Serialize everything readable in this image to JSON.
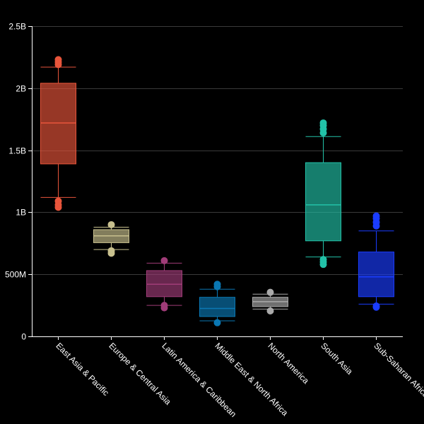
{
  "chart_data": {
    "type": "box",
    "title": "",
    "xlabel": "",
    "ylabel": "",
    "ylim": [
      0,
      2500000000
    ],
    "y_ticks": [
      {
        "value": 0,
        "label": "0"
      },
      {
        "value": 500000000,
        "label": "500M"
      },
      {
        "value": 1000000000,
        "label": "1B"
      },
      {
        "value": 1500000000,
        "label": "1.5B"
      },
      {
        "value": 2000000000,
        "label": "2B"
      },
      {
        "value": 2500000000,
        "label": "2.5B"
      }
    ],
    "grid": true,
    "legend": "none",
    "categories": [
      "East Asia & Pacific",
      "Europe & Central Asia",
      "Latin America & Caribbean",
      "Middle East & North Africa",
      "North America",
      "South Asia",
      "Sub-Saharan Africa"
    ],
    "boxes": [
      {
        "category": "East Asia & Pacific",
        "color": "#e8553b",
        "whisker_low": 1120000000,
        "q1": 1390000000,
        "median": 1720000000,
        "q3": 2040000000,
        "whisker_high": 2170000000,
        "outliers": [
          1040000000,
          1060000000,
          1090000000,
          2190000000,
          2210000000,
          2230000000
        ]
      },
      {
        "category": "Europe & Central Asia",
        "color": "#c8c08e",
        "whisker_low": 700000000,
        "q1": 755000000,
        "median": 810000000,
        "q3": 860000000,
        "whisker_high": 880000000,
        "outliers": [
          670000000,
          690000000,
          900000000
        ]
      },
      {
        "category": "Latin America & Caribbean",
        "color": "#a03c78",
        "whisker_low": 250000000,
        "q1": 320000000,
        "median": 420000000,
        "q3": 530000000,
        "whisker_high": 590000000,
        "outliers": [
          230000000,
          250000000,
          610000000
        ]
      },
      {
        "category": "Middle East & North Africa",
        "color": "#0a78b4",
        "whisker_low": 125000000,
        "q1": 160000000,
        "median": 225000000,
        "q3": 315000000,
        "whisker_high": 380000000,
        "outliers": [
          110000000,
          400000000,
          420000000
        ]
      },
      {
        "category": "North America",
        "color": "#aaaaaa",
        "whisker_low": 220000000,
        "q1": 240000000,
        "median": 280000000,
        "q3": 315000000,
        "whisker_high": 340000000,
        "outliers": [
          205000000,
          355000000
        ]
      },
      {
        "category": "South Asia",
        "color": "#22c2a8",
        "whisker_low": 640000000,
        "q1": 770000000,
        "median": 1060000000,
        "q3": 1400000000,
        "whisker_high": 1610000000,
        "outliers": [
          580000000,
          600000000,
          620000000,
          1640000000,
          1670000000,
          1700000000,
          1720000000
        ]
      },
      {
        "category": "Sub-Saharan Africa",
        "color": "#1a3cff",
        "whisker_low": 260000000,
        "q1": 320000000,
        "median": 480000000,
        "q3": 680000000,
        "whisker_high": 850000000,
        "outliers": [
          235000000,
          245000000,
          890000000,
          920000000,
          950000000,
          970000000
        ]
      }
    ]
  }
}
